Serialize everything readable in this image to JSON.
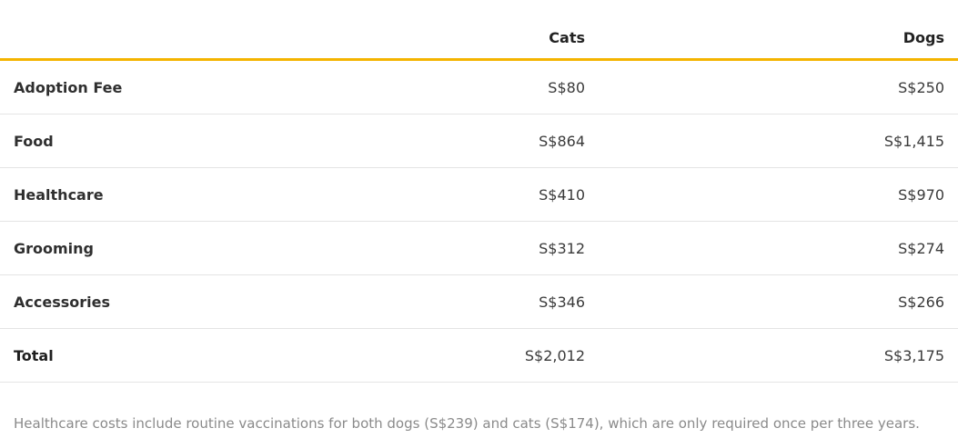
{
  "table": {
    "headers": [
      "",
      "Cats",
      "Dogs"
    ],
    "rows": [
      {
        "label": "Adoption Fee",
        "cats": "S$80",
        "dogs": "S$250"
      },
      {
        "label": "Food",
        "cats": "S$864",
        "dogs": "S$1,415"
      },
      {
        "label": "Healthcare",
        "cats": "S$410",
        "dogs": "S$970"
      },
      {
        "label": "Grooming",
        "cats": "S$312",
        "dogs": "S$274"
      },
      {
        "label": "Accessories",
        "cats": "S$346",
        "dogs": "S$266"
      },
      {
        "label": "Total",
        "cats": "S$2,012",
        "dogs": "S$3,175"
      }
    ]
  },
  "footnote": "Healthcare costs include routine vaccinations for both dogs (S$239) and cats (S$174), which are only required once per three years.",
  "colors": {
    "header_rule": "#f4b400",
    "row_divider": "#e4e4e4",
    "footnote_text": "#8a8a8a"
  }
}
